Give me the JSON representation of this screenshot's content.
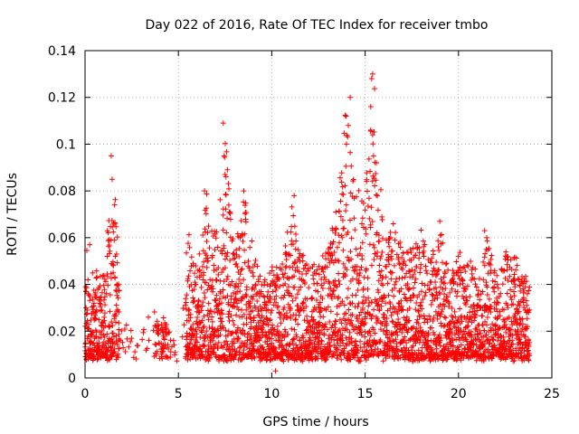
{
  "chart_data": {
    "type": "scatter",
    "title": "Day 022 of 2016, Rate Of TEC Index for receiver tmbo",
    "xlabel": "GPS time / hours",
    "ylabel": "ROTI / TECUs",
    "xlim": [
      0,
      25
    ],
    "ylim": [
      0,
      0.14
    ],
    "xticks": [
      "0",
      "5",
      "10",
      "15",
      "20",
      "25"
    ],
    "yticks": [
      "0",
      "0.02",
      "0.04",
      "0.06",
      "0.08",
      "0.1",
      "0.12",
      "0.14"
    ],
    "grid": true,
    "marker": "plus",
    "color": "#ff0000",
    "approximate_envelope": {
      "x": [
        0.0,
        0.5,
        1.0,
        1.5,
        2.0,
        2.5,
        3.0,
        3.5,
        4.0,
        4.5,
        5.0,
        5.5,
        6.0,
        6.5,
        7.0,
        7.5,
        8.0,
        8.5,
        9.0,
        9.5,
        10.0,
        10.5,
        11.0,
        11.5,
        12.0,
        12.5,
        13.0,
        13.5,
        14.0,
        14.5,
        15.0,
        15.5,
        16.0,
        16.5,
        17.0,
        17.5,
        18.0,
        18.5,
        19.0,
        19.5,
        20.0,
        20.5,
        21.0,
        21.5,
        22.0,
        22.5,
        23.0,
        23.5
      ],
      "y_max": [
        0.057,
        0.047,
        0.045,
        0.095,
        0.026,
        0.02,
        0.018,
        0.034,
        0.026,
        0.034,
        0.0,
        0.066,
        0.047,
        0.08,
        0.06,
        0.109,
        0.055,
        0.081,
        0.056,
        0.04,
        0.048,
        0.047,
        0.078,
        0.055,
        0.048,
        0.05,
        0.057,
        0.075,
        0.12,
        0.081,
        0.08,
        0.13,
        0.06,
        0.066,
        0.055,
        0.056,
        0.064,
        0.05,
        0.067,
        0.045,
        0.054,
        0.052,
        0.046,
        0.063,
        0.045,
        0.054,
        0.054,
        0.045
      ]
    },
    "notable_points": [
      {
        "x": 1.4,
        "y": 0.095
      },
      {
        "x": 1.45,
        "y": 0.085
      },
      {
        "x": 1.4,
        "y": 0.059
      },
      {
        "x": 7.4,
        "y": 0.109
      },
      {
        "x": 7.45,
        "y": 0.095
      },
      {
        "x": 7.5,
        "y": 0.087
      },
      {
        "x": 6.4,
        "y": 0.08
      },
      {
        "x": 8.5,
        "y": 0.08
      },
      {
        "x": 11.2,
        "y": 0.078
      },
      {
        "x": 14.2,
        "y": 0.12
      },
      {
        "x": 14.1,
        "y": 0.108
      },
      {
        "x": 14.0,
        "y": 0.1
      },
      {
        "x": 15.4,
        "y": 0.13
      },
      {
        "x": 15.35,
        "y": 0.128
      },
      {
        "x": 15.3,
        "y": 0.116
      },
      {
        "x": 15.4,
        "y": 0.104
      },
      {
        "x": 15.45,
        "y": 0.095
      },
      {
        "x": 15.6,
        "y": 0.092
      },
      {
        "x": 21.4,
        "y": 0.063
      },
      {
        "x": 19.0,
        "y": 0.067
      },
      {
        "x": 0.25,
        "y": 0.057
      },
      {
        "x": 10.2,
        "y": 0.003
      }
    ]
  }
}
